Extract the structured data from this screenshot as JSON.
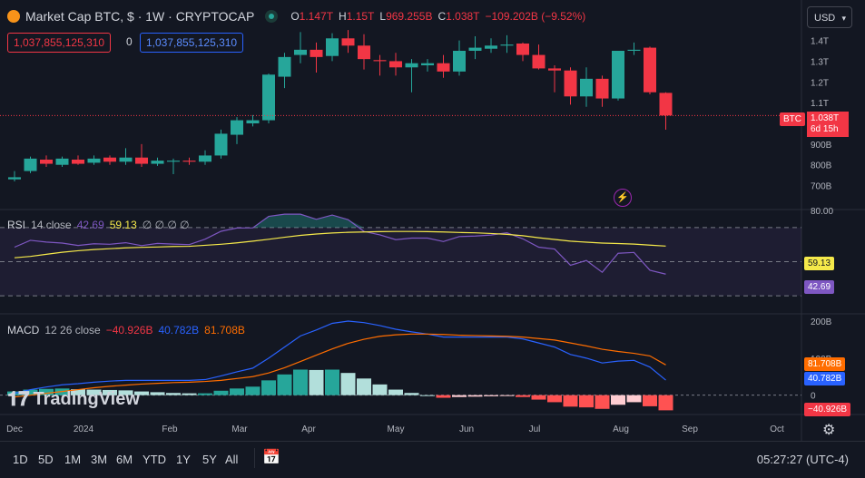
{
  "header": {
    "title": "Market Cap BTC, $ · 1W · CRYPTOCAP",
    "ohlc": [
      {
        "k": "O",
        "v": "1.147T"
      },
      {
        "k": "H",
        "v": "1.15T"
      },
      {
        "k": "L",
        "v": "969.255B"
      },
      {
        "k": "C",
        "v": "1.038T"
      },
      {
        "k": "",
        "v": "−109.202B (−9.52%)"
      }
    ],
    "sell_price": "1,037,855,125,310",
    "spread": "0",
    "buy_price": "1,037,855,125,310",
    "currency": "USD"
  },
  "price_label": {
    "symbol": "BTC",
    "value": "1.038T",
    "countdown": "6d 15h"
  },
  "rsi": {
    "label": "RSI",
    "params": "14 close",
    "value": "42.69",
    "ma_value": "59.13",
    "extra": "∅ ∅ ∅ ∅"
  },
  "macd": {
    "label": "MACD",
    "params": "12 26 close",
    "hist_value": "−40.926B",
    "macd_value": "40.782B",
    "signal_value": "81.708B"
  },
  "bottom": {
    "timeframes": [
      "1D",
      "5D",
      "1M",
      "3M",
      "6M",
      "YTD",
      "1Y",
      "5Y",
      "All"
    ],
    "clock": "05:27:27 (UTC-4)"
  },
  "watermark": "TradingView",
  "colors": {
    "up": "#26a69a",
    "down": "#f23645",
    "rsi": "#7e57c2",
    "rsi_ma": "#f5e94a",
    "macd": "#2962ff",
    "signal": "#ff6d00",
    "hist_pos_strong": "#26a69a",
    "hist_pos_weak": "#b2dfdb",
    "hist_neg_strong": "#ff5252",
    "hist_neg_weak": "#ffcdd2"
  },
  "chart_data": [
    {
      "type": "candlestick",
      "title": "Market Cap BTC, $ · 1W · CRYPTOCAP",
      "xlabel": "",
      "ylabel": "",
      "x_ticks": [
        "Dec",
        "2024",
        "Feb",
        "Mar",
        "Apr",
        "May",
        "Jun",
        "Jul",
        "Aug",
        "Sep",
        "Oct"
      ],
      "y_ticks": [
        "1.4T",
        "1.3T",
        "1.2T",
        "1.1T",
        "1T",
        "900B",
        "800B",
        "700B"
      ],
      "ylim_billions": [
        650,
        1420
      ],
      "candles_billions": [
        [
          730,
          770,
          720,
          740
        ],
        [
          770,
          840,
          760,
          830
        ],
        [
          825,
          845,
          790,
          805
        ],
        [
          800,
          840,
          790,
          830
        ],
        [
          825,
          845,
          800,
          805
        ],
        [
          810,
          845,
          800,
          830
        ],
        [
          835,
          845,
          800,
          815
        ],
        [
          815,
          880,
          800,
          835
        ],
        [
          835,
          900,
          790,
          805
        ],
        [
          805,
          835,
          795,
          820
        ],
        [
          815,
          830,
          755,
          820
        ],
        [
          820,
          835,
          800,
          815
        ],
        [
          815,
          870,
          800,
          845
        ],
        [
          845,
          970,
          830,
          950
        ],
        [
          945,
          1030,
          900,
          1015
        ],
        [
          1000,
          1040,
          985,
          1015
        ],
        [
          1015,
          1240,
          1000,
          1235
        ],
        [
          1225,
          1340,
          1170,
          1320
        ],
        [
          1330,
          1440,
          1290,
          1355
        ],
        [
          1355,
          1390,
          1245,
          1320
        ],
        [
          1325,
          1435,
          1300,
          1410
        ],
        [
          1410,
          1450,
          1340,
          1375
        ],
        [
          1375,
          1430,
          1260,
          1310
        ],
        [
          1305,
          1330,
          1230,
          1300
        ],
        [
          1300,
          1340,
          1230,
          1270
        ],
        [
          1270,
          1310,
          1150,
          1290
        ],
        [
          1280,
          1310,
          1250,
          1290
        ],
        [
          1290,
          1330,
          1220,
          1250
        ],
        [
          1250,
          1400,
          1230,
          1350
        ],
        [
          1350,
          1420,
          1310,
          1365
        ],
        [
          1360,
          1410,
          1340,
          1375
        ],
        [
          1375,
          1425,
          1340,
          1380
        ],
        [
          1385,
          1390,
          1300,
          1330
        ],
        [
          1330,
          1380,
          1260,
          1265
        ],
        [
          1265,
          1280,
          1150,
          1255
        ],
        [
          1255,
          1270,
          1090,
          1130
        ],
        [
          1130,
          1270,
          1080,
          1215
        ],
        [
          1215,
          1230,
          1080,
          1120
        ],
        [
          1120,
          1350,
          1110,
          1350
        ],
        [
          1350,
          1390,
          1330,
          1355
        ],
        [
          1365,
          1370,
          1140,
          1150
        ],
        [
          1147,
          1150,
          969.255,
          1038
        ]
      ],
      "current_value": "1.038T"
    },
    {
      "type": "line",
      "title": "RSI 14 close",
      "y_ticks": [
        "80.00"
      ],
      "ylim": [
        20,
        80
      ],
      "bands": [
        70,
        50,
        30
      ],
      "series": [
        {
          "name": "RSI",
          "values": [
            58.5,
            62.5,
            61.5,
            60.9,
            59.5,
            60.5,
            60.2,
            61.1,
            59.4,
            60.7,
            60.3,
            60.0,
            63.2,
            67.8,
            69.7,
            69.8,
            76.5,
            77.8,
            77.8,
            74.8,
            77.3,
            74.6,
            67.7,
            65.7,
            62.9,
            63.8,
            63.8,
            61.8,
            64.7,
            65.0,
            65.6,
            66.9,
            63.4,
            58.5,
            57.4,
            47.9,
            50.7,
            43.8,
            54.9,
            55.4,
            45.0,
            42.69
          ]
        },
        {
          "name": "MA",
          "values": [
            52.3,
            53.1,
            54.3,
            55.5,
            56.4,
            57.1,
            57.6,
            58.1,
            58.4,
            58.6,
            58.9,
            59.0,
            59.6,
            60.2,
            61.0,
            62.0,
            63.1,
            64.3,
            65.4,
            66.2,
            66.8,
            67.2,
            67.4,
            67.6,
            67.7,
            67.7,
            67.6,
            67.4,
            67.1,
            66.9,
            66.5,
            66.0,
            65.2,
            64.0,
            63.0,
            62.0,
            61.4,
            60.9,
            60.6,
            60.3,
            59.7,
            59.13
          ]
        }
      ]
    },
    {
      "type": "line",
      "title": "MACD 12 26 close",
      "y_ticks": [
        "200B",
        "100B",
        "0"
      ],
      "ylim_billions": [
        -40,
        205
      ],
      "series": [
        {
          "name": "MACD",
          "values_billions": [
            5,
            15,
            22,
            28,
            31,
            35,
            38,
            40,
            40,
            40,
            40,
            40,
            42,
            52,
            63,
            73,
            100,
            130,
            160,
            176,
            194,
            200,
            196,
            188,
            178,
            171,
            165,
            157,
            157,
            157,
            157,
            157,
            152,
            141,
            130,
            110,
            100,
            87,
            92,
            94,
            76,
            40.782
          ]
        },
        {
          "name": "Signal",
          "values_billions": [
            -5,
            0,
            5,
            10,
            15,
            20,
            24,
            27,
            30,
            32,
            34,
            35,
            37,
            40,
            45,
            50,
            60,
            74,
            91,
            108,
            125,
            140,
            151,
            159,
            163,
            165,
            165,
            164,
            162,
            161,
            160,
            159,
            157,
            153,
            149,
            141,
            133,
            124,
            118,
            113,
            106,
            81.708
          ]
        },
        {
          "name": "Histogram",
          "values_billions": [
            10,
            15,
            17,
            18,
            16,
            15,
            14,
            13,
            10,
            8,
            6,
            5,
            5,
            12,
            18,
            23,
            40,
            56,
            69,
            68,
            69,
            60,
            45,
            29,
            15,
            6,
            0,
            -7,
            -5,
            -4,
            -3,
            -2,
            -5,
            -12,
            -19,
            -31,
            -33,
            -37,
            -26,
            -19,
            -30,
            -40.926
          ]
        }
      ]
    }
  ]
}
